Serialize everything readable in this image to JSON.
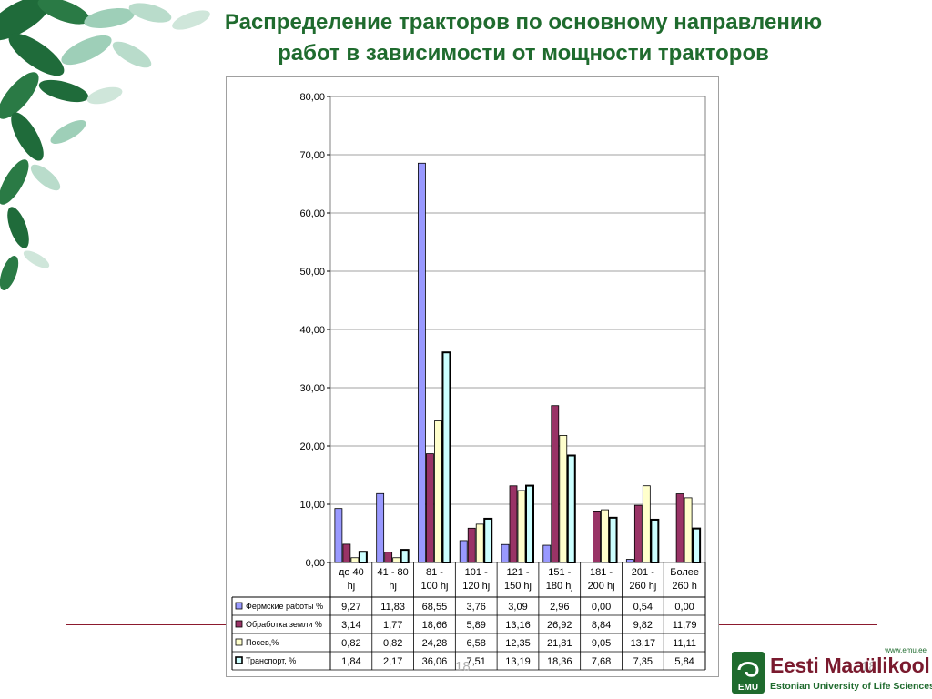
{
  "title": {
    "line1": "Распределение тракторов по основному направлению",
    "line2": "работ в зависимости от мощности тракторов"
  },
  "page_number": "18",
  "logo": {
    "url": "www.emu.ee",
    "name": "Eesti Maaülikool",
    "subtitle": "Estonian University of Life Sciences",
    "mark_text": "EMU"
  },
  "colors": {
    "title": "#1f6b2e",
    "rule": "#8c1a2e",
    "leaf_dark": "#1f6b3a",
    "leaf_light": "#9ecfb8"
  },
  "chart_data": {
    "type": "bar",
    "categories": [
      [
        "до 40",
        "hj"
      ],
      [
        "41 - 80",
        "hj"
      ],
      [
        "81 -",
        "100 hj"
      ],
      [
        "101 -",
        "120 hj"
      ],
      [
        "121 -",
        "150 hj"
      ],
      [
        "151 -",
        "180 hj"
      ],
      [
        "181 -",
        "200 hj"
      ],
      [
        "201 -",
        "260 hj"
      ],
      [
        "Более",
        "260 h"
      ]
    ],
    "series": [
      {
        "name": "Фермские работы %",
        "color": "#9999ff",
        "values": [
          9.27,
          11.83,
          68.55,
          3.76,
          3.09,
          2.96,
          0.0,
          0.54,
          0.0
        ],
        "labels": [
          "9,27",
          "11,83",
          "68,55",
          "3,76",
          "3,09",
          "2,96",
          "0,00",
          "0,54",
          "0,00"
        ]
      },
      {
        "name": "Обработка земли %",
        "color": "#993366",
        "values": [
          3.14,
          1.77,
          18.66,
          5.89,
          13.16,
          26.92,
          8.84,
          9.82,
          11.79
        ],
        "labels": [
          "3,14",
          "1,77",
          "18,66",
          "5,89",
          "13,16",
          "26,92",
          "8,84",
          "9,82",
          "11,79"
        ]
      },
      {
        "name": "Посев,%",
        "color": "#ffffcc",
        "values": [
          0.82,
          0.82,
          24.28,
          6.58,
          12.35,
          21.81,
          9.05,
          13.17,
          11.11
        ],
        "labels": [
          "0,82",
          "0,82",
          "24,28",
          "6,58",
          "12,35",
          "21,81",
          "9,05",
          "13,17",
          "11,11"
        ]
      },
      {
        "name": "Транспорт, %",
        "color": "#ccffff",
        "values": [
          1.84,
          2.17,
          36.06,
          7.51,
          13.19,
          18.36,
          7.68,
          7.35,
          5.84
        ],
        "labels": [
          "1,84",
          "2,17",
          "36,06",
          "7,51",
          "13,19",
          "18,36",
          "7,68",
          "7,35",
          "5,84"
        ]
      }
    ],
    "y_ticks": [
      "0,00",
      "10,00",
      "20,00",
      "30,00",
      "40,00",
      "50,00",
      "60,00",
      "70,00",
      "80,00"
    ],
    "ylim": [
      0,
      80
    ],
    "grid": true,
    "legend": "data-table-below"
  }
}
